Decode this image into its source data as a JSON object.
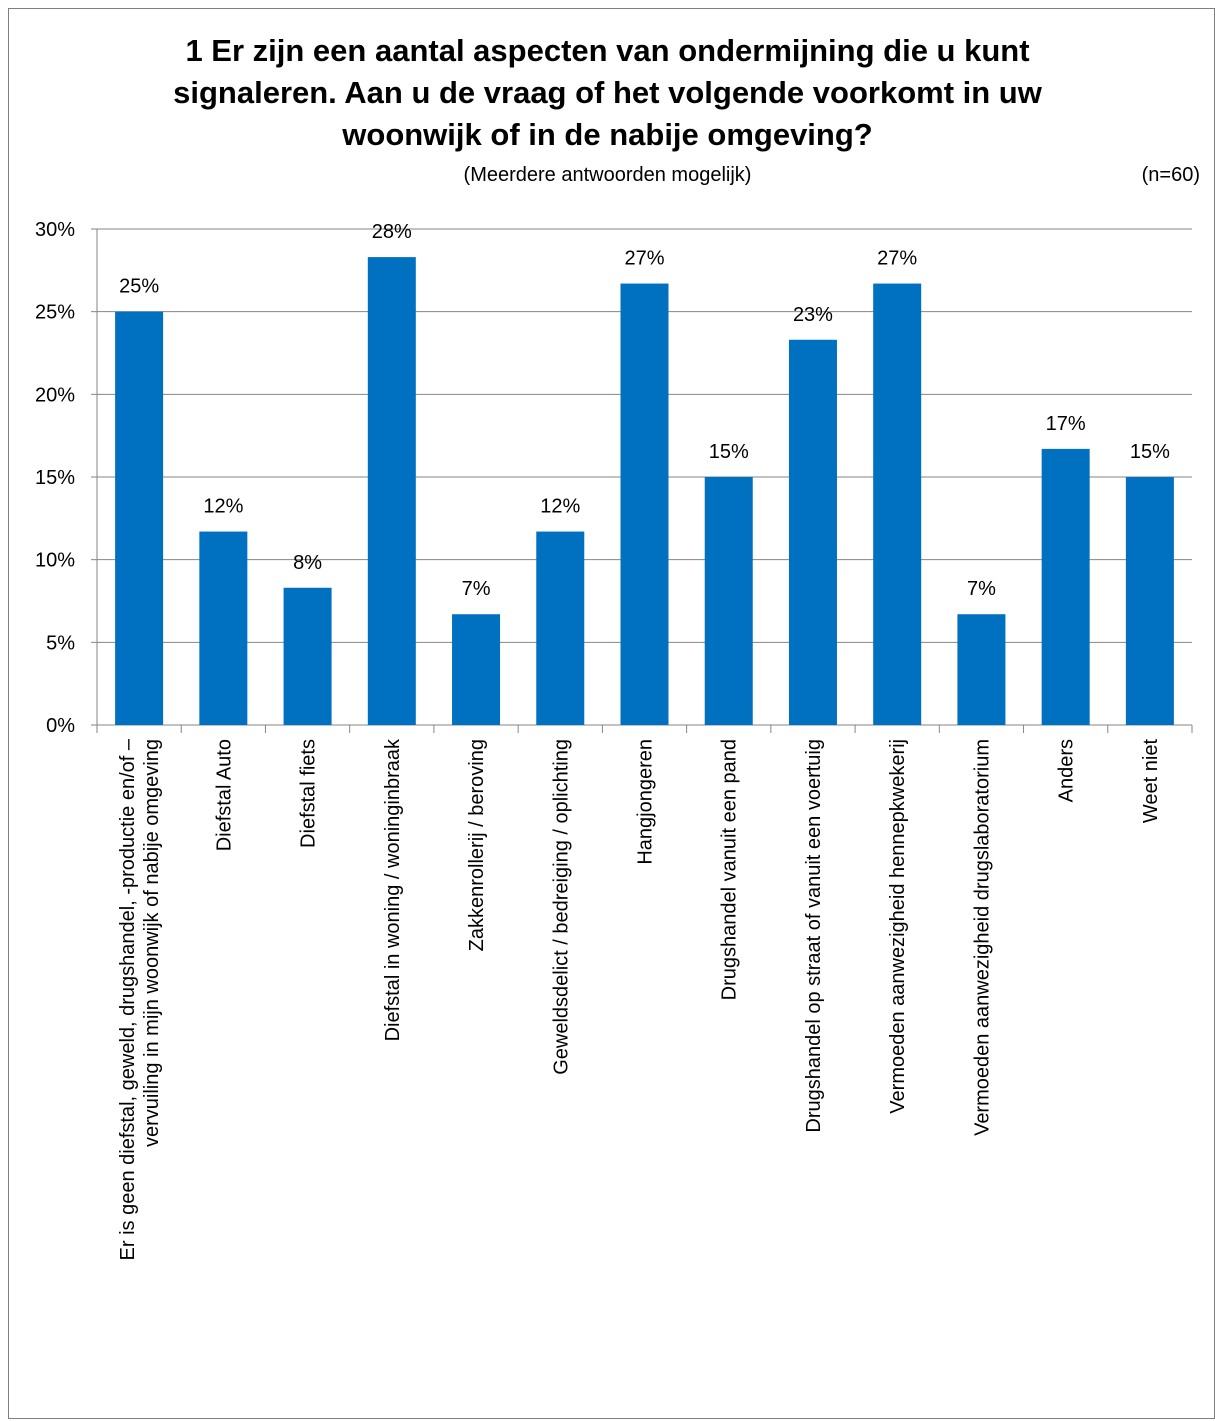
{
  "header": {
    "title_lines": [
      "1 Er zijn een aantal aspecten van ondermijning die u kunt",
      "signaleren. Aan u de vraag of het volgende voorkomt in uw",
      "woonwijk of in de nabije omgeving?"
    ],
    "subtitle": "(Meerdere antwoorden mogelijk)",
    "sample_size": "(n=60)"
  },
  "chart_data": {
    "type": "bar",
    "title": "1 Er zijn een aantal aspecten van ondermijning die u kunt signaleren. Aan u de vraag of het volgende voorkomt in uw woonwijk of in de nabije omgeving?",
    "subtitle": "(Meerdere antwoorden mogelijk)",
    "xlabel": "",
    "ylabel": "",
    "ylim": [
      0,
      30
    ],
    "yticks": [
      "0%",
      "5%",
      "10%",
      "15%",
      "20%",
      "25%",
      "30%"
    ],
    "grid": true,
    "bar_color": "#0070C0",
    "categories": [
      [
        "Er is geen diefstal, geweld, drugshandel, -productie en/of –",
        "vervuiling in mijn woonwijk of nabije omgeving"
      ],
      [
        "Diefstal Auto"
      ],
      [
        "Diefstal fiets"
      ],
      [
        "Diefstal in woning / woninginbraak"
      ],
      [
        "Zakkenrollerij / beroving"
      ],
      [
        "Geweldsdelict / bedreiging / oplichting"
      ],
      [
        "Hangjongeren"
      ],
      [
        "Drugshandel vanuit een pand"
      ],
      [
        "Drugshandel op straat of vanuit een voertuig"
      ],
      [
        "Vermoeden aanwezigheid hennepkwekerij"
      ],
      [
        "Vermoeden aanwezigheid drugslaboratorium"
      ],
      [
        "Anders"
      ],
      [
        "Weet niet"
      ]
    ],
    "values": [
      25,
      11.7,
      8.3,
      28.3,
      6.7,
      11.7,
      26.7,
      15,
      23.3,
      26.7,
      6.7,
      16.7,
      15
    ],
    "data_labels": [
      "25%",
      "12%",
      "8%",
      "28%",
      "7%",
      "12%",
      "27%",
      "15%",
      "23%",
      "27%",
      "7%",
      "17%",
      "15%"
    ]
  }
}
